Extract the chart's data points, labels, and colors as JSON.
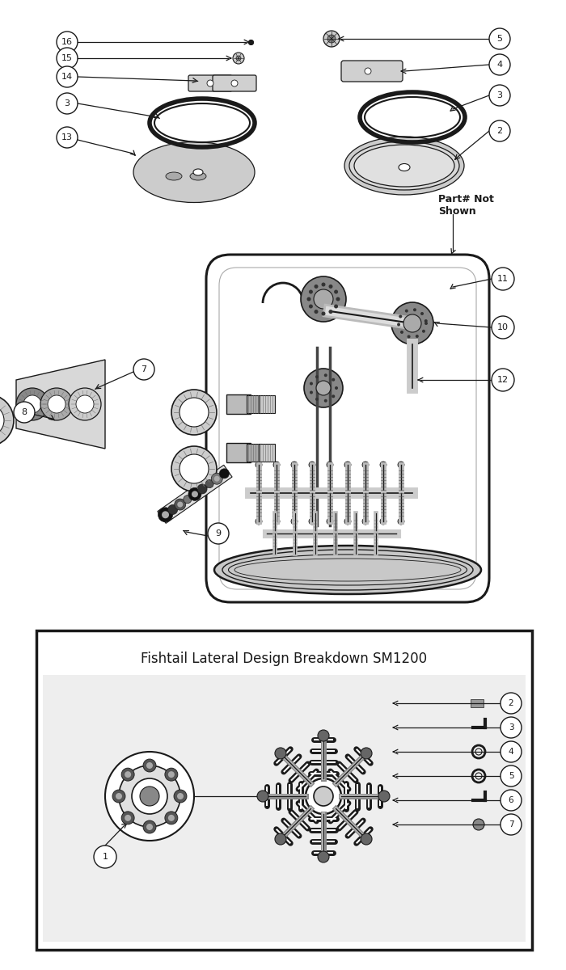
{
  "bg_color": "#ffffff",
  "lc": "#1a1a1a",
  "title": "Fishtail Lateral Design Breakdown SM1200",
  "part_not_shown": "Part# Not\nShown",
  "figsize": [
    7.0,
    12.0
  ],
  "dpi": 100
}
